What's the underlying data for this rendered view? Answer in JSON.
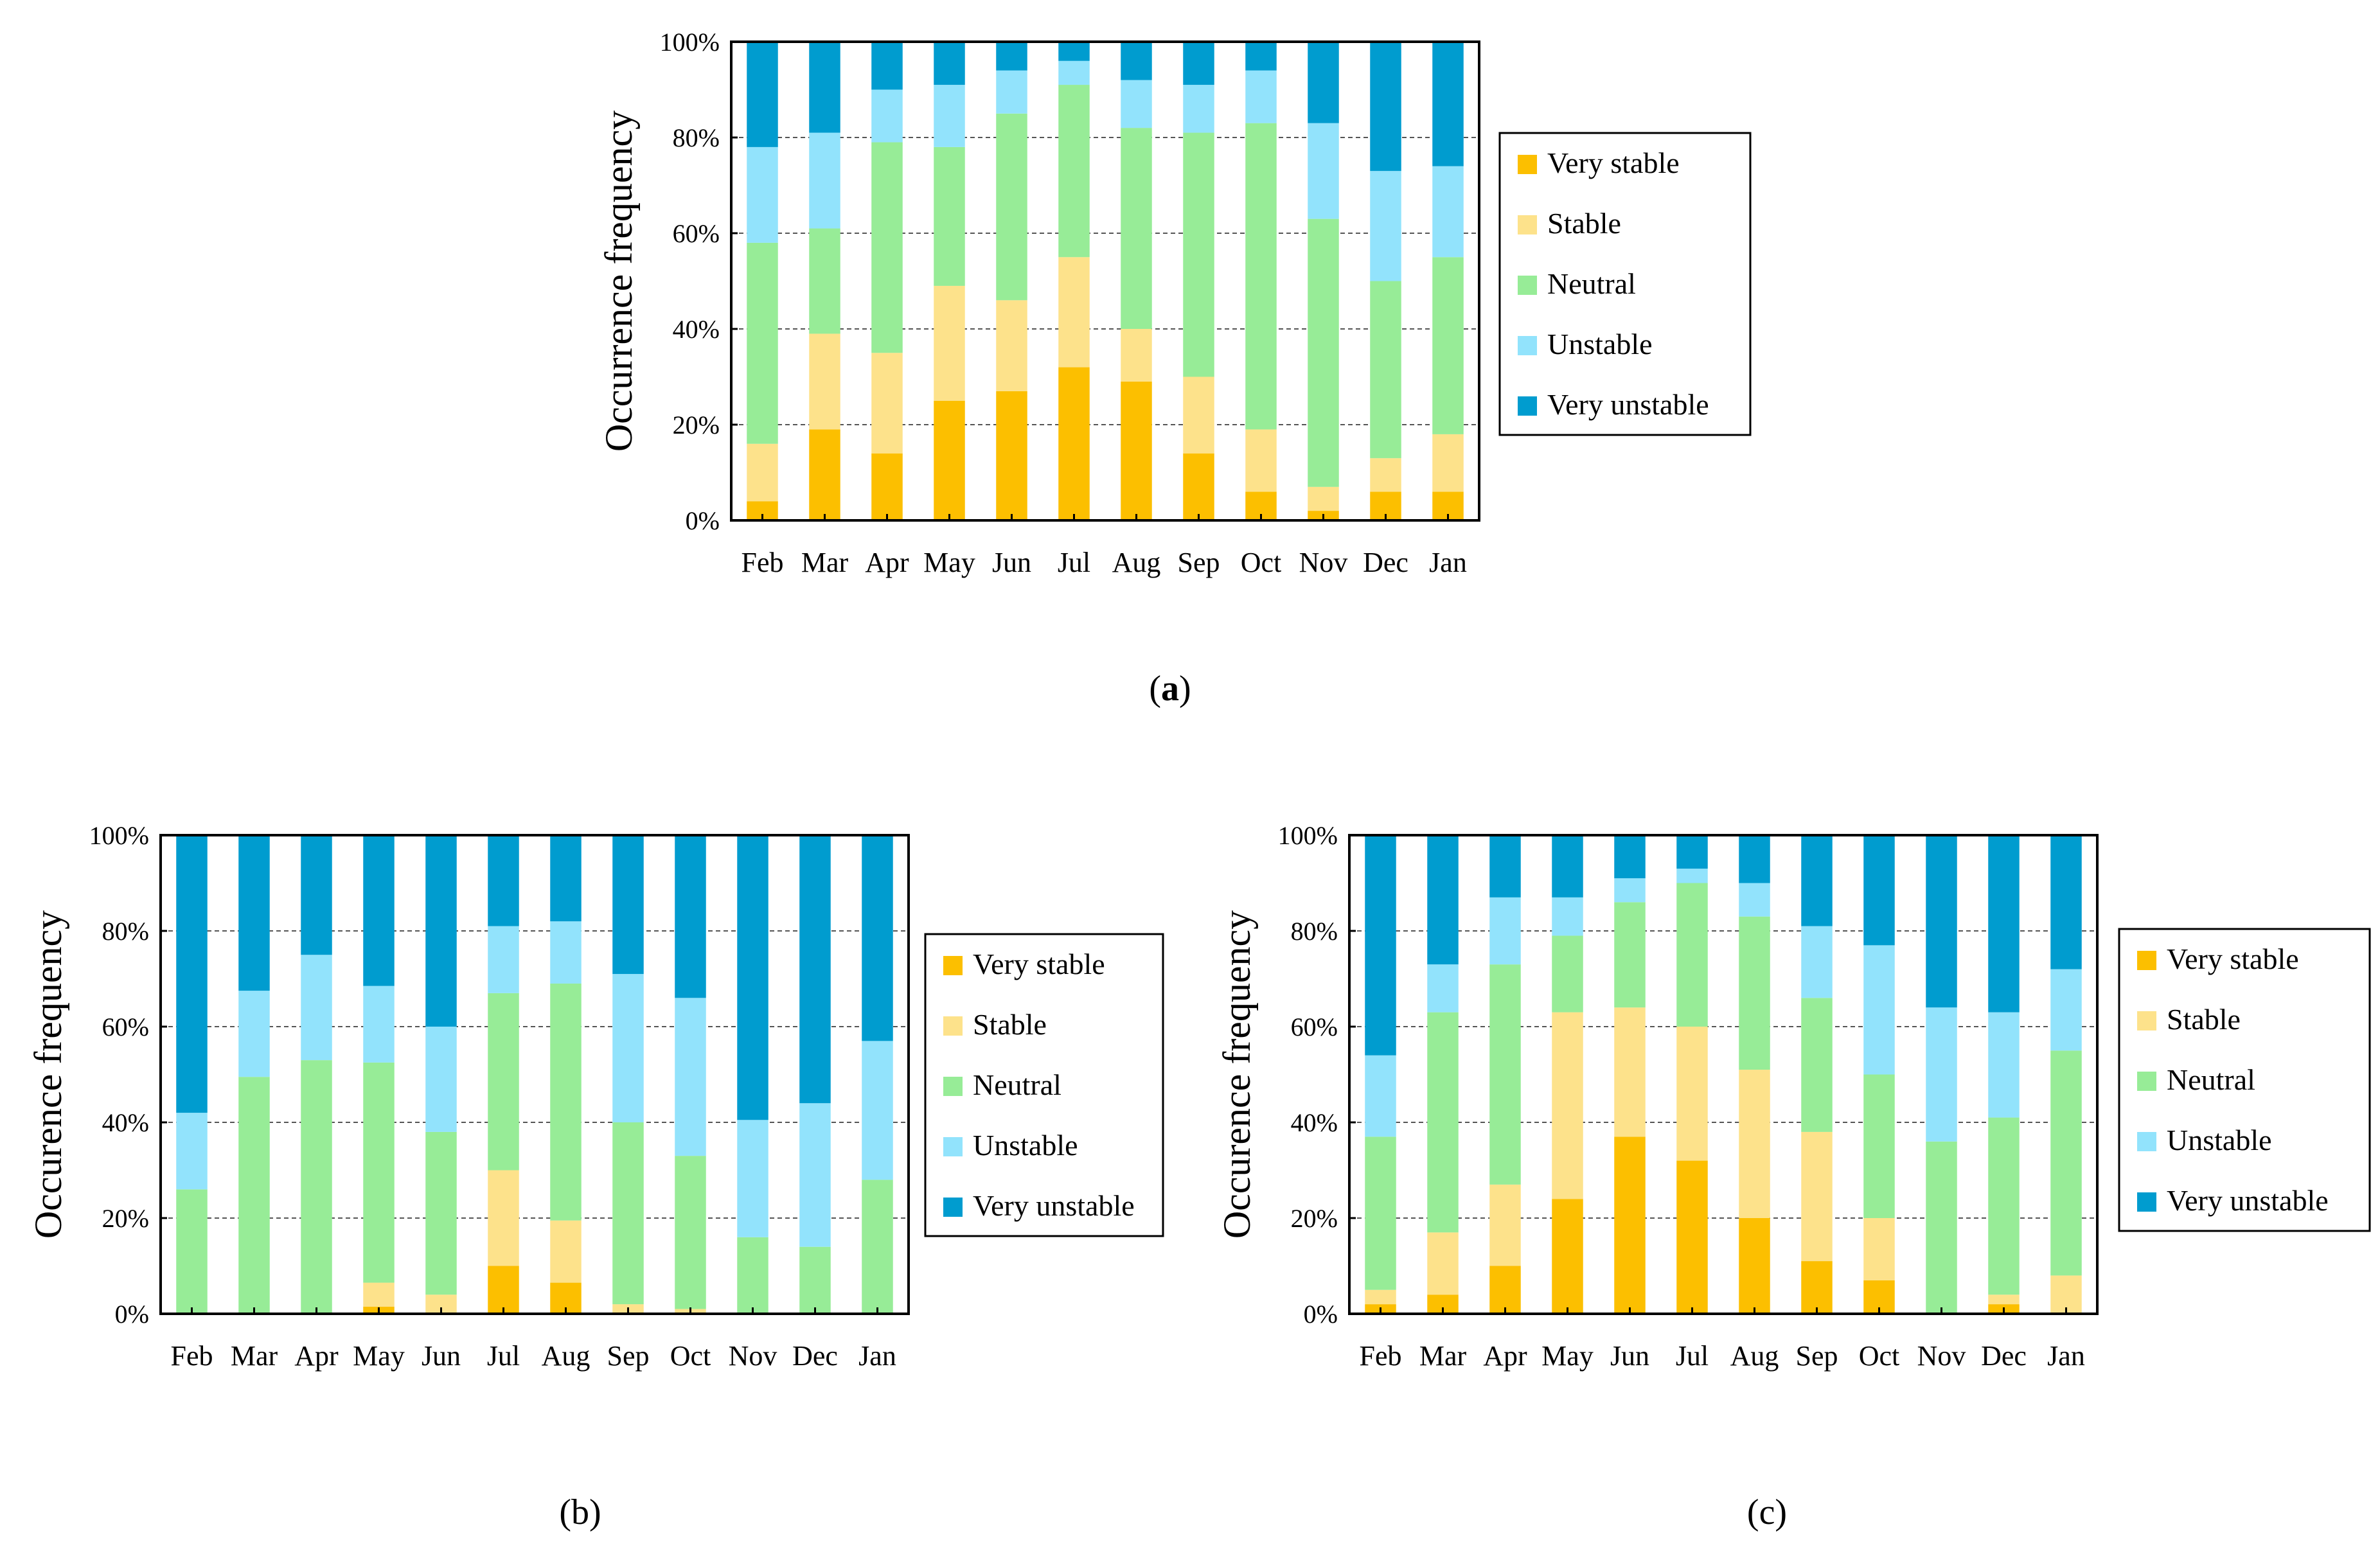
{
  "series_names": [
    "Very stable",
    "Stable",
    "Neutral",
    "Unstable",
    "Very unstable"
  ],
  "series_colors": [
    "#fcbf00",
    "#fde28b",
    "#97ec97",
    "#92e3fc",
    "#009ccf"
  ],
  "chart_data": [
    {
      "type": "bar",
      "stacked": true,
      "id": "a",
      "caption_label": "a",
      "ylabel": "Occurrence frequency",
      "ylim": [
        0,
        100
      ],
      "yticks": [
        "0%",
        "20%",
        "40%",
        "60%",
        "80%",
        "100%"
      ],
      "grid": "horizontal dashed",
      "legend_position": "right",
      "categories": [
        "Feb",
        "Mar",
        "Apr",
        "May",
        "Jun",
        "Jul",
        "Aug",
        "Sep",
        "Oct",
        "Nov",
        "Dec",
        "Jan"
      ],
      "series": [
        {
          "name": "Very stable",
          "values": [
            4,
            19,
            14,
            25,
            27,
            32,
            29,
            14,
            6,
            2,
            6,
            6
          ]
        },
        {
          "name": "Stable",
          "values": [
            12,
            20,
            21,
            24,
            19,
            23,
            11,
            16,
            13,
            5,
            7,
            12
          ]
        },
        {
          "name": "Neutral",
          "values": [
            42,
            22,
            44,
            29,
            39,
            36,
            42,
            51,
            64,
            56,
            37,
            37
          ]
        },
        {
          "name": "Unstable",
          "values": [
            20,
            20,
            11,
            13,
            9,
            5,
            10,
            10,
            11,
            20,
            23,
            19
          ]
        },
        {
          "name": "Very unstable",
          "values": [
            22,
            19,
            10,
            9,
            6,
            4,
            8,
            9,
            6,
            17,
            27,
            26
          ]
        }
      ]
    },
    {
      "type": "bar",
      "stacked": true,
      "id": "b",
      "caption_label": "(b)",
      "ylabel": "Occurence frequency",
      "ylim": [
        0,
        100
      ],
      "yticks": [
        "0%",
        "20%",
        "40%",
        "60%",
        "80%",
        "100%"
      ],
      "grid": "horizontal dashed",
      "legend_position": "right",
      "categories": [
        "Feb",
        "Mar",
        "Apr",
        "May",
        "Jun",
        "Jul",
        "Aug",
        "Sep",
        "Oct",
        "Nov",
        "Dec",
        "Jan"
      ],
      "series": [
        {
          "name": "Very stable",
          "values": [
            0,
            0,
            0,
            1.5,
            0,
            10,
            6.5,
            0,
            0,
            0,
            0,
            0
          ]
        },
        {
          "name": "Stable",
          "values": [
            0,
            0,
            0,
            5,
            4,
            20,
            13,
            2,
            1,
            0,
            0,
            0
          ]
        },
        {
          "name": "Neutral",
          "values": [
            26,
            49.5,
            53,
            46,
            34,
            37,
            49.5,
            38,
            32,
            16,
            14,
            28
          ]
        },
        {
          "name": "Unstable",
          "values": [
            16,
            18,
            22,
            16,
            22,
            14,
            13,
            31,
            33,
            24.5,
            30,
            29
          ]
        },
        {
          "name": "Very unstable",
          "values": [
            58,
            32.5,
            25,
            31.5,
            40,
            19,
            18,
            29,
            34,
            59.5,
            56,
            43
          ]
        }
      ]
    },
    {
      "type": "bar",
      "stacked": true,
      "id": "c",
      "caption_label": "(c)",
      "ylabel": "Occurence frequency",
      "ylim": [
        0,
        100
      ],
      "yticks": [
        "0%",
        "20%",
        "40%",
        "60%",
        "80%",
        "100%"
      ],
      "grid": "horizontal dashed",
      "legend_position": "right",
      "categories": [
        "Feb",
        "Mar",
        "Apr",
        "May",
        "Jun",
        "Jul",
        "Aug",
        "Sep",
        "Oct",
        "Nov",
        "Dec",
        "Jan"
      ],
      "series": [
        {
          "name": "Very stable",
          "values": [
            2,
            4,
            10,
            24,
            37,
            32,
            20,
            11,
            7,
            0,
            2,
            0
          ]
        },
        {
          "name": "Stable",
          "values": [
            3,
            13,
            17,
            39,
            27,
            28,
            31,
            27,
            13,
            0,
            2,
            8
          ]
        },
        {
          "name": "Neutral",
          "values": [
            32,
            46,
            46,
            16,
            22,
            30,
            32,
            28,
            30,
            36,
            37,
            47
          ]
        },
        {
          "name": "Unstable",
          "values": [
            17,
            10,
            14,
            8,
            5,
            3,
            7,
            15,
            27,
            28,
            22,
            17
          ]
        },
        {
          "name": "Very unstable",
          "values": [
            46,
            27,
            13,
            13,
            9,
            7,
            10,
            19,
            23,
            36,
            37,
            28
          ]
        }
      ]
    }
  ]
}
